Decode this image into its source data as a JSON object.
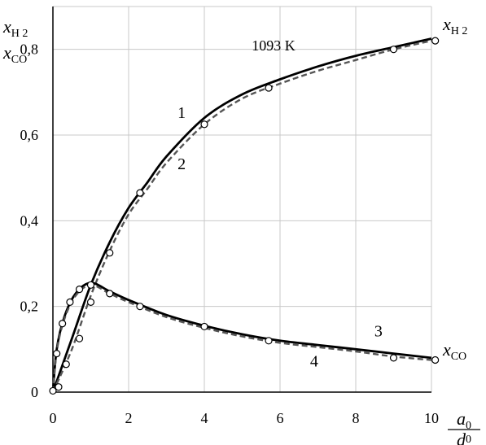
{
  "chart_data": {
    "type": "line",
    "title": "1093 K",
    "xlim": [
      0,
      10
    ],
    "ylim": [
      0,
      0.9
    ],
    "grid": true,
    "x_ticks": [
      0,
      2,
      4,
      6,
      8,
      10
    ],
    "x_tick_labels": [
      "0",
      "2",
      "4",
      "6",
      "8",
      "10"
    ],
    "y_ticks": [
      0,
      0.2,
      0.4,
      0.6,
      0.8
    ],
    "y_tick_labels": [
      "0",
      "0,2",
      "0,4",
      "0,6",
      "0,8"
    ],
    "xlabel": {
      "num": "a",
      "num_sub": "0",
      "den": "d",
      "den_sub": "0"
    },
    "ylabel": [
      {
        "main": "x",
        "sub": "H 2"
      },
      {
        "main": "x",
        "sub": "CO"
      }
    ],
    "series_labels": [
      {
        "main": "x",
        "sub": "H 2",
        "x": 10.3,
        "y": 0.845
      },
      {
        "main": "x",
        "sub": "CO",
        "x": 10.3,
        "y": 0.085
      }
    ],
    "series": [
      {
        "name": "1",
        "style": "solid",
        "color": "#000000",
        "x": [
          0,
          0.5,
          1.0,
          1.5,
          2.0,
          2.5,
          3.0,
          4.0,
          5.0,
          6.0,
          7.0,
          8.0,
          9.0,
          10.0
        ],
        "y": [
          0,
          0.125,
          0.25,
          0.35,
          0.43,
          0.49,
          0.55,
          0.64,
          0.695,
          0.73,
          0.76,
          0.785,
          0.805,
          0.825
        ]
      },
      {
        "name": "2",
        "style": "dashed",
        "color": "#555555",
        "x": [
          0,
          0.5,
          1.0,
          1.5,
          2.0,
          2.5,
          3.0,
          4.0,
          5.0,
          6.0,
          7.0,
          8.0,
          9.0,
          10.0
        ],
        "y": [
          0,
          0.1,
          0.225,
          0.33,
          0.415,
          0.475,
          0.535,
          0.625,
          0.685,
          0.72,
          0.75,
          0.775,
          0.8,
          0.82
        ]
      },
      {
        "name": "3",
        "style": "solid",
        "color": "#000000",
        "x": [
          0,
          0.1,
          0.3,
          0.6,
          1.0,
          1.5,
          2.0,
          3.0,
          4.0,
          5.0,
          6.0,
          7.0,
          8.0,
          9.0,
          10.0
        ],
        "y": [
          0,
          0.1,
          0.175,
          0.23,
          0.255,
          0.235,
          0.215,
          0.18,
          0.155,
          0.135,
          0.12,
          0.11,
          0.1,
          0.09,
          0.08
        ]
      },
      {
        "name": "4",
        "style": "dashed",
        "color": "#555555",
        "x": [
          0,
          0.1,
          0.3,
          0.6,
          1.0,
          1.5,
          2.0,
          3.0,
          4.0,
          5.0,
          6.0,
          7.0,
          8.0,
          9.0,
          10.0
        ],
        "y": [
          0,
          0.095,
          0.17,
          0.225,
          0.25,
          0.23,
          0.21,
          0.175,
          0.15,
          0.13,
          0.115,
          0.105,
          0.095,
          0.083,
          0.075
        ]
      }
    ],
    "markers": [
      {
        "name": "h2-measured",
        "x": [
          0,
          0.15,
          0.35,
          0.7,
          1.0,
          1.5,
          2.3,
          4.0,
          5.7,
          9.0,
          10.1
        ],
        "y": [
          0.003,
          0.012,
          0.065,
          0.125,
          0.21,
          0.325,
          0.465,
          0.625,
          0.71,
          0.8,
          0.82
        ]
      },
      {
        "name": "co-measured",
        "x": [
          0.1,
          0.25,
          0.45,
          0.7,
          1.0,
          1.5,
          2.3,
          4.0,
          5.7,
          9.0,
          10.1
        ],
        "y": [
          0.09,
          0.16,
          0.21,
          0.24,
          0.25,
          0.23,
          0.2,
          0.153,
          0.12,
          0.08,
          0.075
        ]
      }
    ],
    "curve_labels": [
      {
        "text": "1",
        "x": 3.4,
        "y": 0.64
      },
      {
        "text": "2",
        "x": 3.4,
        "y": 0.52
      },
      {
        "text": "3",
        "x": 8.6,
        "y": 0.13
      },
      {
        "text": "4",
        "x": 6.9,
        "y": 0.06
      }
    ]
  }
}
